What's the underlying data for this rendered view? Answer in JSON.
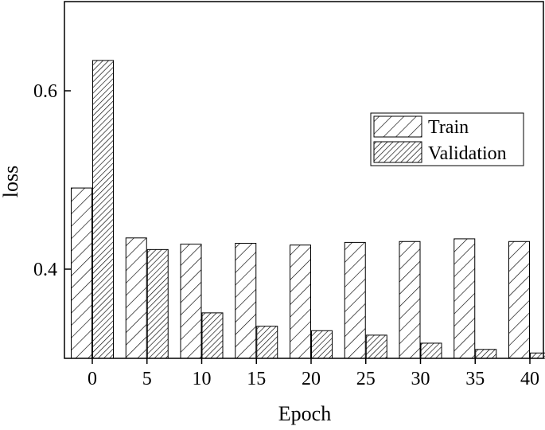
{
  "chart_data": {
    "type": "bar",
    "xlabel": "Epoch",
    "ylabel": "loss",
    "categories": [
      "0",
      "5",
      "10",
      "15",
      "20",
      "25",
      "30",
      "35",
      "40"
    ],
    "series": [
      {
        "name": "Train",
        "values": [
          0.491,
          0.435,
          0.428,
          0.429,
          0.427,
          0.43,
          0.431,
          0.434,
          0.431
        ]
      },
      {
        "name": "Validation",
        "values": [
          0.634,
          0.422,
          0.351,
          0.336,
          0.331,
          0.326,
          0.317,
          0.31,
          0.306
        ]
      }
    ],
    "ylim": [
      0.3,
      0.7
    ],
    "yticks": [
      "0.4",
      "0.6"
    ],
    "legend": "top-right",
    "grid": false
  }
}
